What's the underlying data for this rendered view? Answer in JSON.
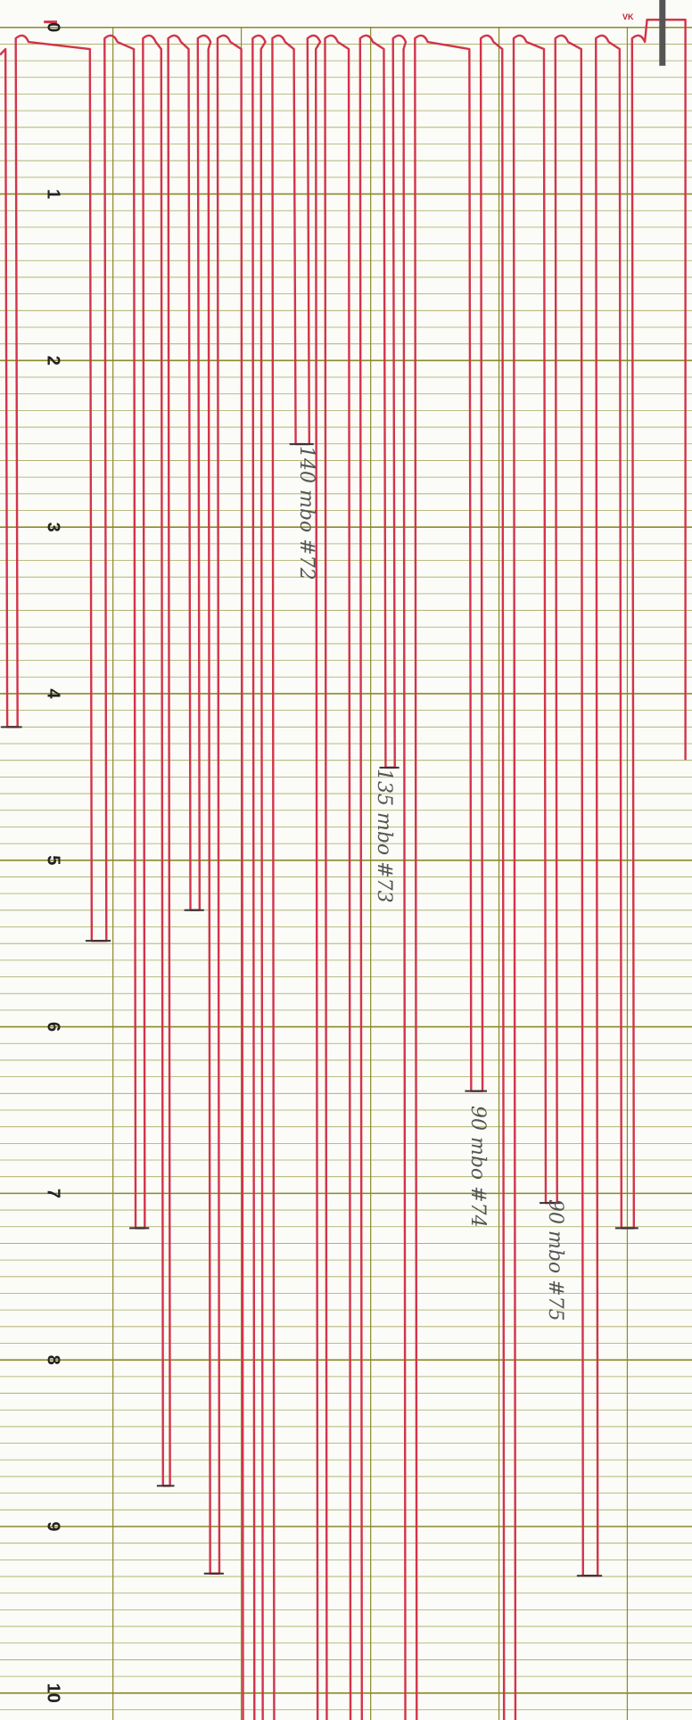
{
  "scale_labels": [
    "0",
    "1",
    "2",
    "3",
    "4",
    "5",
    "6",
    "7",
    "8",
    "9",
    "10"
  ],
  "annotations": [
    "140 mbo #72",
    "135 mbo #73",
    "90 mbo #74",
    "90 mbo #75"
  ],
  "corner_mark": "VK"
}
